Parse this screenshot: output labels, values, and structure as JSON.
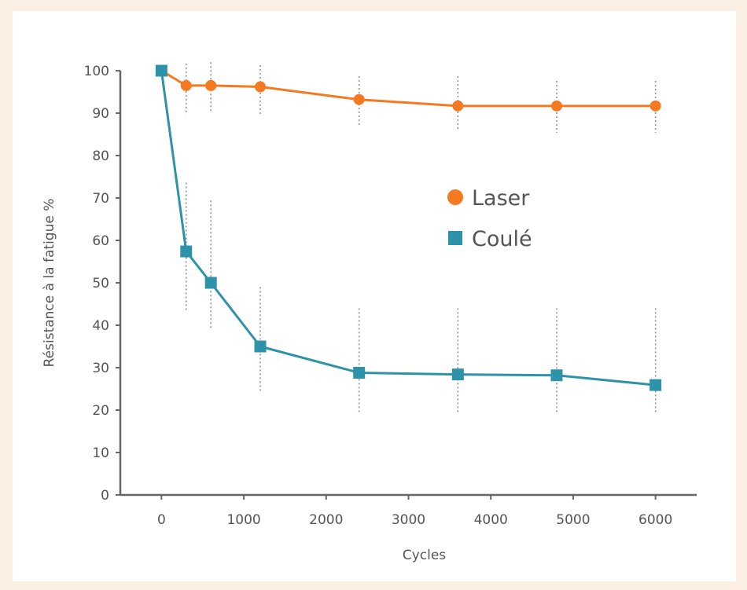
{
  "chart_data": {
    "type": "line",
    "title": "",
    "xlabel": "Cycles",
    "ylabel": "Résistance à la fatigue %",
    "xlim": [
      -500,
      6500
    ],
    "ylim": [
      0,
      100
    ],
    "x_ticks": [
      0,
      1000,
      2000,
      3000,
      4000,
      5000,
      6000
    ],
    "y_ticks": [
      0,
      10,
      20,
      30,
      40,
      50,
      60,
      70,
      80,
      90,
      100
    ],
    "grid": false,
    "legend_position": "right-middle",
    "series": [
      {
        "name": "Laser",
        "color": "#f47920",
        "marker": "circle",
        "x": [
          0,
          300,
          600,
          1200,
          2400,
          3600,
          4800,
          6000
        ],
        "y": [
          100,
          96.5,
          96.5,
          96.2,
          93.2,
          91.7,
          91.7,
          91.7
        ],
        "err_low": [
          null,
          89.6,
          90.3,
          89.6,
          86.8,
          86.1,
          85.4,
          85.4
        ],
        "err_high": [
          null,
          101.7,
          102.0,
          101.3,
          98.7,
          98.7,
          97.6,
          97.6
        ]
      },
      {
        "name": "Coulé",
        "color": "#2e93a9",
        "marker": "square",
        "x": [
          0,
          300,
          600,
          1200,
          2400,
          3600,
          4800,
          6000
        ],
        "y": [
          100,
          57.4,
          50,
          35,
          28.8,
          28.4,
          28.2,
          25.9
        ],
        "err_low": [
          null,
          43.5,
          39.3,
          24.2,
          19.1,
          19.1,
          19.1,
          19.1
        ],
        "err_high": [
          null,
          73.6,
          69.4,
          49.0,
          44.0,
          44.0,
          44.0,
          44.0
        ]
      }
    ]
  }
}
